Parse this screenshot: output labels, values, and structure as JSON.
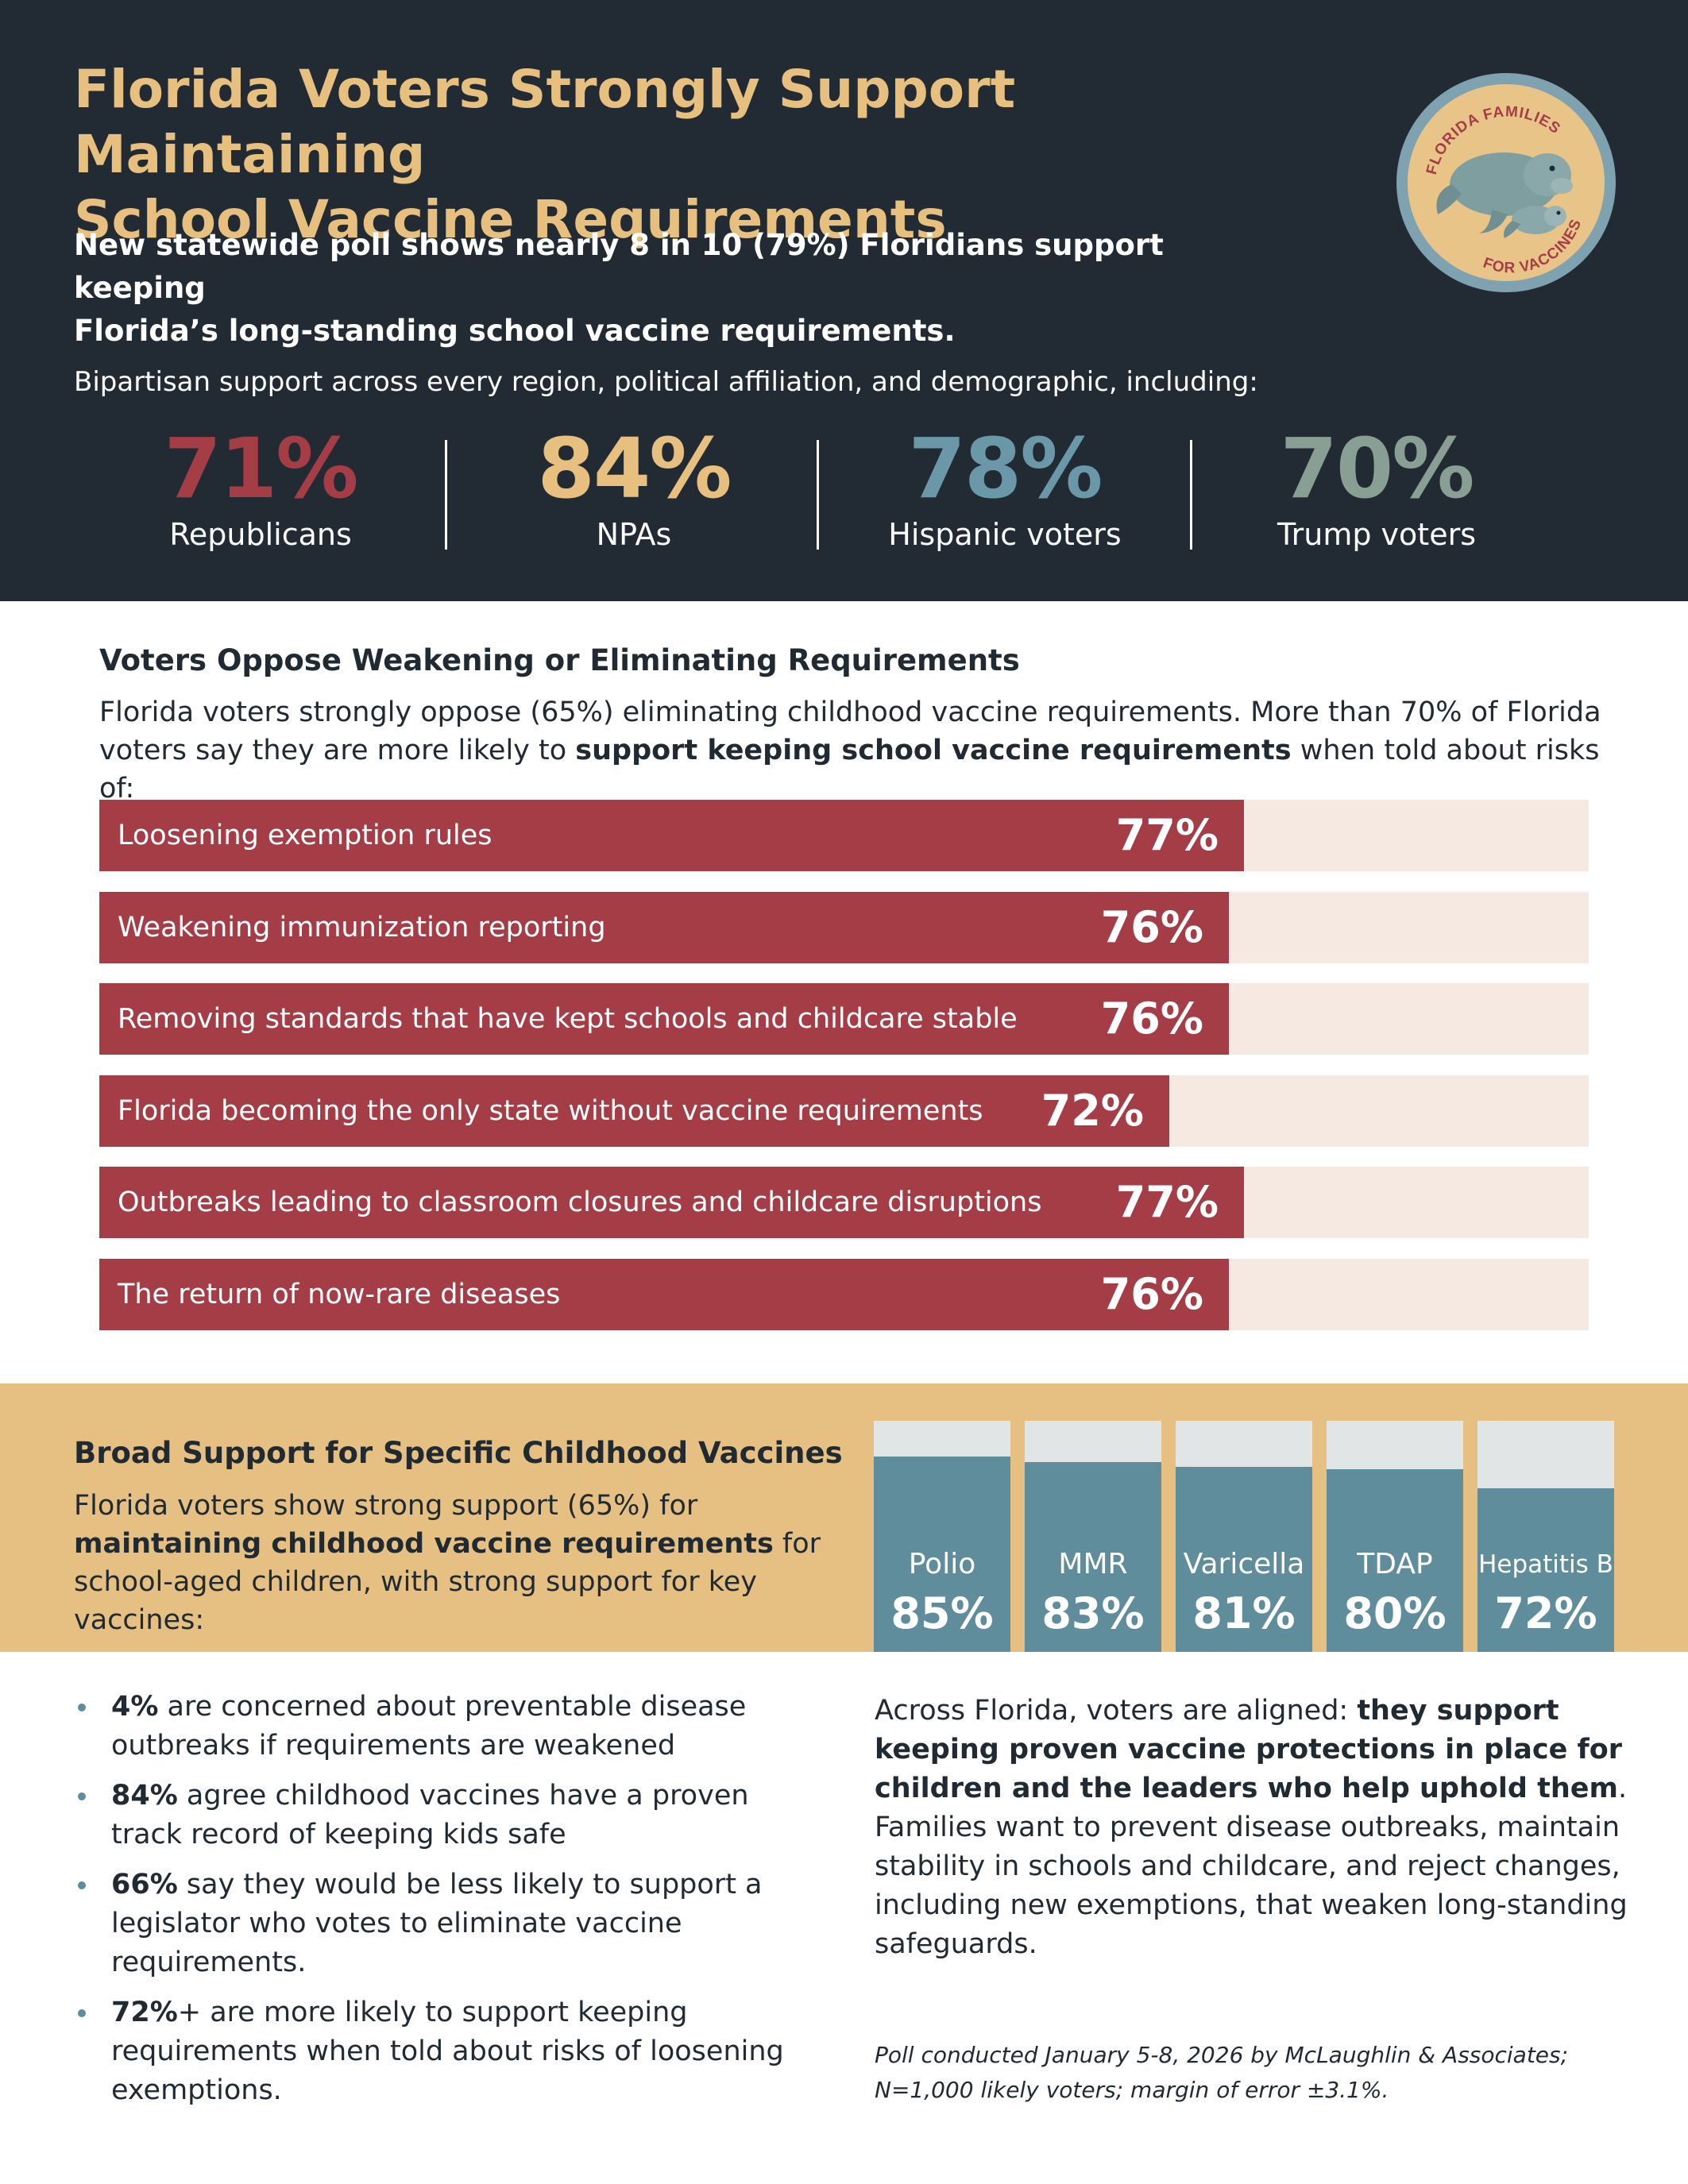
{
  "header": {
    "title_line1": "Florida Voters Strongly Support Maintaining",
    "title_line2": "School Vaccine Requirements",
    "subtitle_line1": "New statewide poll shows nearly 8 in 10 (79%) Floridians support keeping",
    "subtitle_line2": "Florida’s long-standing school vaccine requirements.",
    "intro": "Bipartisan support across every region, political affiliation, and demographic, including:"
  },
  "badge": {
    "top_text": "FLORIDA FAMILIES",
    "bottom_text": "FOR VACCINES",
    "icon": "manatee-icon"
  },
  "stats": [
    {
      "value": "71%",
      "label": "Republicans",
      "color": "#a53d47"
    },
    {
      "value": "84%",
      "label": "NPAs",
      "color": "#e7c07f"
    },
    {
      "value": "78%",
      "label": "Hispanic voters",
      "color": "#6b98a8"
    },
    {
      "value": "70%",
      "label": "Trump voters",
      "color": "#8a9f93"
    }
  ],
  "oppose_section": {
    "title": "Voters Oppose Weakening or Eliminating Requirements",
    "text_part1": "Florida voters strongly oppose (65%) eliminating childhood vaccine requirements. More than 70% of Florida voters say they are more likely to ",
    "text_bold": "support keeping school vaccine requirements",
    "text_part2": " when told about risks of:"
  },
  "vaccine_section": {
    "title": "Broad Support for Specific Childhood Vaccines",
    "text_part1": "Florida voters show strong support (65%) for ",
    "text_bold": "maintaining childhood vaccine requirements",
    "text_part2": " for school-aged children, with strong support for key vaccines:"
  },
  "bullets": [
    {
      "bold": "4%",
      "text": " are concerned about preventable disease outbreaks if requirements are weakened"
    },
    {
      "bold": "84%",
      "text": " agree childhood vaccines have a proven track record of keeping kids safe"
    },
    {
      "bold": "66%",
      "text": " say they would be less likely to support a legislator who votes to eliminate vaccine requirements."
    },
    {
      "bold": "72%",
      "text": "+ are more likely to support keeping requirements when told about risks of loosening exemptions."
    }
  ],
  "closing": {
    "part1": "Across Florida, voters are aligned: ",
    "bold": "they support keeping proven vaccine protections in place for children and the leaders who help uphold them",
    "part2": ". Families want to prevent disease outbreaks, maintain stability in schools and childcare, and reject changes, including new exemptions, that weaken long-standing safeguards."
  },
  "footnote_line1": "Poll conducted January 5-8, 2026 by McLaughlin & Associates;",
  "footnote_line2": "N=1,000 likely voters; margin of error ±3.1%.",
  "colors": {
    "header_bg": "#222b33",
    "accent_gold": "#e7c07f",
    "bar_red": "#a53d47",
    "bar_track": "#f6e9e2",
    "band_gold": "#e6c083",
    "vaccine_teal": "#5f8d9c"
  },
  "chart_data": [
    {
      "type": "bar",
      "orientation": "horizontal",
      "categories": [
        "Loosening exemption rules",
        "Weakening immunization reporting",
        "Removing standards that have kept schools and childcare stable",
        "Florida becoming the only state without vaccine requirements",
        "Outbreaks leading to classroom closures and childcare disruptions",
        "The return of now-rare diseases"
      ],
      "values": [
        77,
        76,
        76,
        72,
        77,
        76
      ],
      "value_labels": [
        "77%",
        "76%",
        "76%",
        "72%",
        "77%",
        "76%"
      ],
      "xlim": [
        0,
        100
      ]
    },
    {
      "type": "bar",
      "orientation": "vertical",
      "categories": [
        "Polio",
        "MMR",
        "Varicella",
        "TDAP",
        "Hepatitis B"
      ],
      "values": [
        85,
        83,
        81,
        80,
        72
      ],
      "value_labels": [
        "85%",
        "83%",
        "81%",
        "80%",
        "72%"
      ],
      "ylim": [
        0,
        100
      ]
    }
  ]
}
